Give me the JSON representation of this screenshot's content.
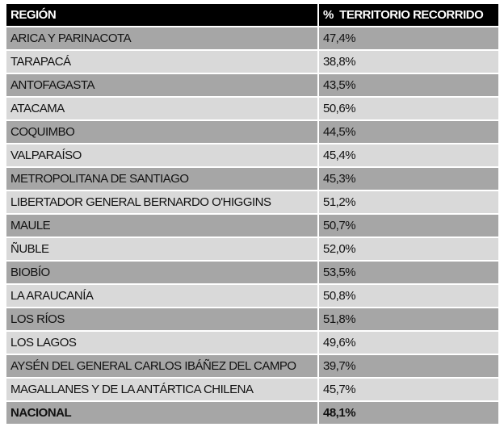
{
  "table": {
    "headers": [
      "REGIÓN",
      "%  TERRITORIO RECORRIDO"
    ],
    "rows": [
      [
        "ARICA Y PARINACOTA",
        "47,4%"
      ],
      [
        "TARAPACÁ",
        "38,8%"
      ],
      [
        "ANTOFAGASTA",
        "43,5%"
      ],
      [
        "ATACAMA",
        "50,6%"
      ],
      [
        "COQUIMBO",
        "44,5%"
      ],
      [
        "VALPARAÍSO",
        "45,4%"
      ],
      [
        "METROPOLITANA DE SANTIAGO",
        "45,3%"
      ],
      [
        "LIBERTADOR GENERAL BERNARDO O'HIGGINS",
        "51,2%"
      ],
      [
        "MAULE",
        "50,7%"
      ],
      [
        "ÑUBLE",
        "52,0%"
      ],
      [
        "BIOBÍO",
        "53,5%"
      ],
      [
        "LA ARAUCANÍA",
        "50,8%"
      ],
      [
        "LOS RÍOS",
        "51,8%"
      ],
      [
        "LOS LAGOS",
        "49,6%"
      ],
      [
        "AYSÉN DEL GENERAL CARLOS IBÁÑEZ DEL CAMPO",
        "39,7%"
      ],
      [
        "MAGALLANES Y DE LA ANTÁRTICA CHILENA",
        "45,7%"
      ]
    ],
    "total": [
      "NACIONAL",
      "48,1%"
    ]
  },
  "colors": {
    "header_bg": "#000000",
    "row_dark": "#a6a6a6",
    "row_light": "#d9d9d9"
  }
}
